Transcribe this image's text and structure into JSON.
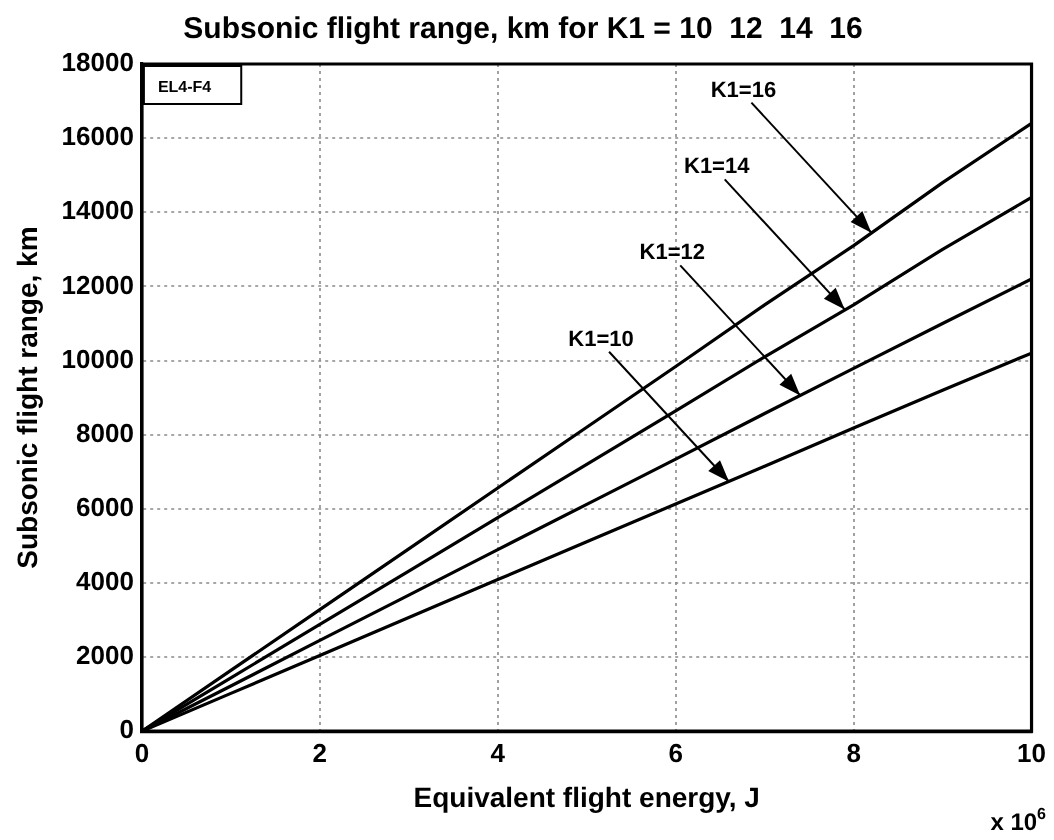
{
  "chart_data": {
    "type": "line",
    "title": "Subsonic flight range, km for K1 = 10  12  14  16",
    "xlabel": "Equivalent flight energy, J",
    "ylabel": "Subsonic flight range, km",
    "x": [
      0,
      1,
      2,
      3,
      4,
      5,
      6,
      7,
      8,
      9,
      10
    ],
    "series": [
      {
        "color": "#000000",
        "values": [
          0,
          1020,
          2040,
          3070,
          4090,
          5110,
          6130,
          7150,
          8180,
          9200,
          10200
        ]
      },
      {
        "color": "#000000",
        "values": [
          0,
          1220,
          2450,
          3670,
          4900,
          6120,
          7340,
          8570,
          9790,
          11000,
          12200
        ]
      },
      {
        "color": "#000000",
        "values": [
          0,
          1440,
          2880,
          4320,
          5760,
          7200,
          8640,
          10100,
          11500,
          13000,
          14400
        ]
      },
      {
        "color": "#000000",
        "values": [
          0,
          1640,
          3280,
          4920,
          6560,
          8200,
          9840,
          11500,
          13100,
          14800,
          16400
        ]
      }
    ],
    "xlim": [
      0,
      10
    ],
    "xticks": [
      0,
      2,
      4,
      6,
      8,
      10
    ],
    "ylim": [
      0,
      18000
    ],
    "yticks": [
      0,
      2000,
      4000,
      6000,
      8000,
      10000,
      12000,
      14000,
      16000,
      18000
    ],
    "grid": true,
    "legend": false,
    "marker": "none",
    "line_style": "solid",
    "annotations": [
      "EL4-F4",
      "x 10$^{6}$",
      {
        "text": "K1=16",
        "x": 8.2,
        "y": 13450
      },
      {
        "text": "K1=14",
        "x": 7.9,
        "y": 11380
      },
      {
        "text": "K1=12",
        "x": 7.4,
        "y": 9060
      },
      {
        "text": "K1=10",
        "x": 6.6,
        "y": 6730
      }
    ]
  }
}
